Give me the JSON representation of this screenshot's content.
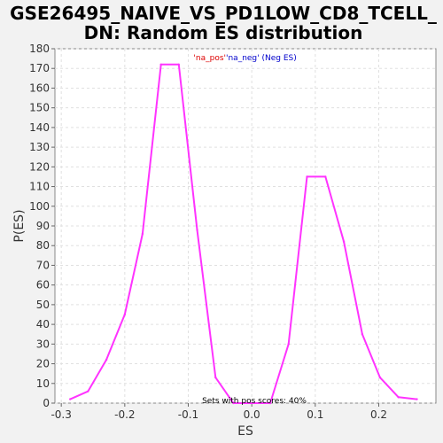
{
  "chart_data": {
    "type": "line",
    "title_lines": [
      "GSE26495_NAIVE_VS_PD1LOW_CD8_TCELL_",
      "DN: Random ES distribution"
    ],
    "xlabel": "ES",
    "ylabel": "P(ES)",
    "xlim": [
      -0.31,
      0.29
    ],
    "ylim": [
      0,
      180
    ],
    "x_ticks": [
      -0.3,
      -0.2,
      -0.1,
      0.0,
      0.1,
      0.2
    ],
    "x_tick_labels": [
      "-0.3",
      "-0.2",
      "-0.1",
      "0.0",
      "0.1",
      "0.2"
    ],
    "y_ticks": [
      0,
      10,
      20,
      30,
      40,
      50,
      60,
      70,
      80,
      90,
      100,
      110,
      120,
      130,
      140,
      150,
      160,
      170,
      180
    ],
    "grid": true,
    "legend": {
      "placement": "top-center",
      "entries": [
        {
          "text": "'na_pos'",
          "color": "#dd0000"
        },
        {
          "text": "'na_neg' (Neg ES)",
          "color": "#0000cc"
        }
      ]
    },
    "annotation": "Sets with pos scores: 40%",
    "series": [
      {
        "color": "#ff33ff",
        "x": [
          -0.286,
          -0.258,
          -0.229,
          -0.2,
          -0.172,
          -0.143,
          -0.115,
          -0.086,
          -0.057,
          -0.029,
          0.0,
          0.029,
          0.058,
          0.087,
          0.116,
          0.145,
          0.174,
          0.202,
          0.231,
          0.26
        ],
        "y": [
          2,
          6,
          22,
          45,
          86,
          172,
          172,
          88,
          13,
          0,
          0,
          0,
          30,
          115,
          115,
          82,
          35,
          13,
          3,
          2
        ]
      }
    ]
  }
}
